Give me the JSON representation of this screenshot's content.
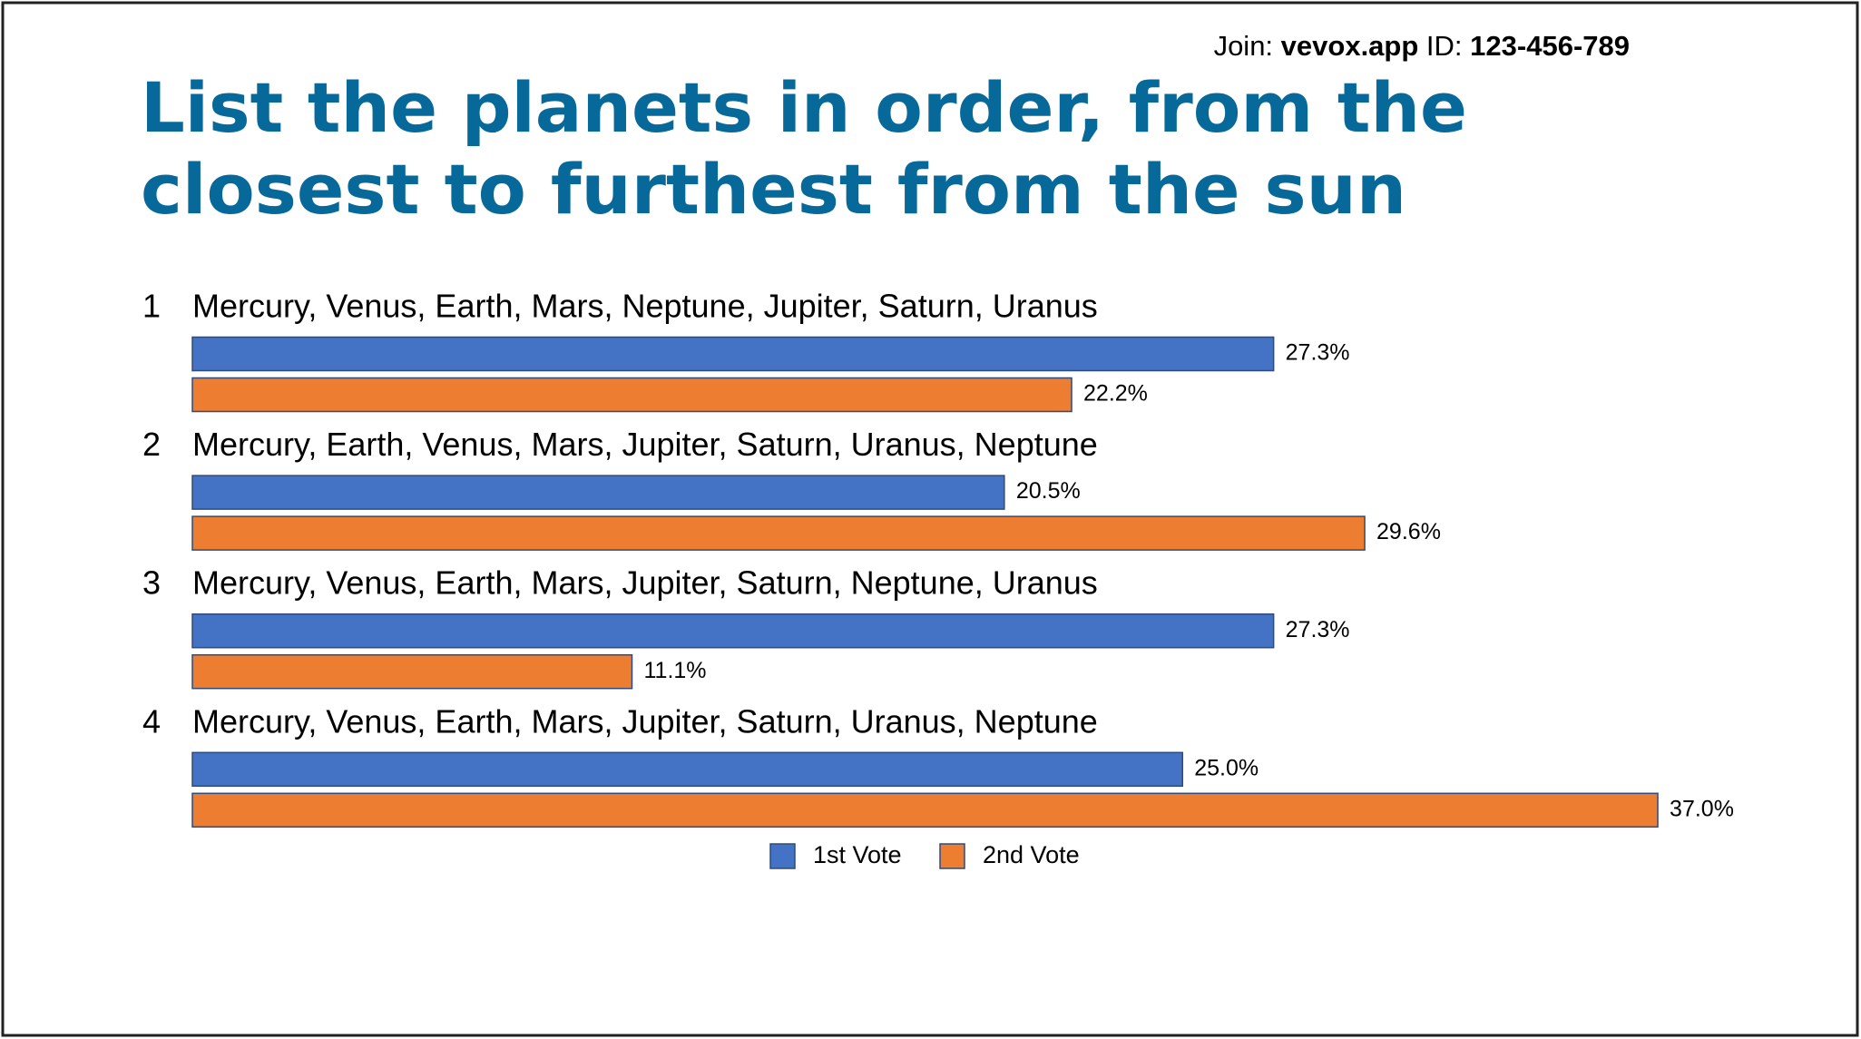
{
  "header": {
    "join_label": "Join:",
    "join_url": "vevox.app",
    "id_label": "ID:",
    "id": "123-456-789"
  },
  "chart_data": {
    "type": "bar",
    "orientation": "horizontal",
    "title_lines": [
      "List the planets in order, from the",
      "closest to furthest from the sun"
    ],
    "ranks": [
      "1",
      "2",
      "3",
      "4"
    ],
    "categories": [
      "Mercury, Venus, Earth, Mars, Neptune, Jupiter, Saturn, Uranus",
      "Mercury, Earth, Venus, Mars, Jupiter, Saturn, Uranus, Neptune",
      "Mercury, Venus, Earth, Mars, Jupiter, Saturn, Neptune, Uranus",
      "Mercury, Venus, Earth, Mars, Jupiter, Saturn, Uranus, Neptune"
    ],
    "series": [
      {
        "name": "1st Vote",
        "color": "#4472c4",
        "values": [
          27.3,
          20.5,
          27.3,
          25.0
        ],
        "value_labels": [
          "27.3%",
          "20.5%",
          "27.3%",
          "25.0%"
        ]
      },
      {
        "name": "2nd Vote",
        "color": "#ed7d31",
        "values": [
          22.2,
          29.6,
          11.1,
          37.0
        ],
        "value_labels": [
          "22.2%",
          "29.6%",
          "11.1%",
          "37.0%"
        ]
      }
    ]
  }
}
